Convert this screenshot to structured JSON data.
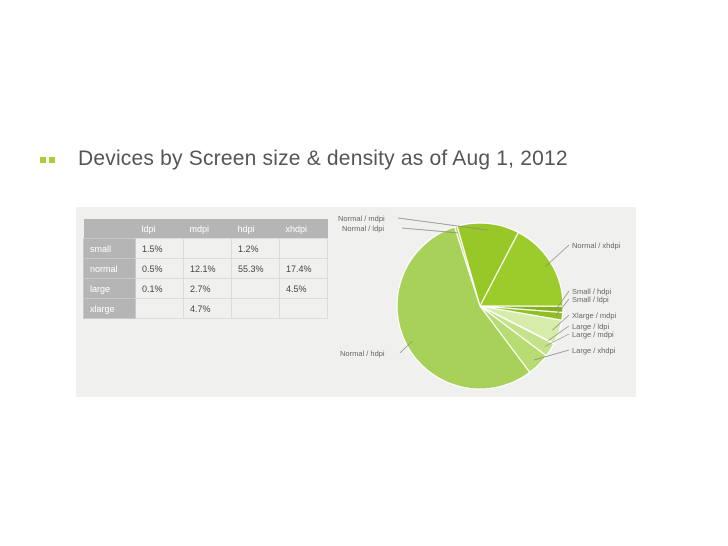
{
  "slide": {
    "title": "Devices by Screen size & density as of Aug 1, 2012"
  },
  "colors": {
    "accent": "#a6cf39",
    "table_header": "#b5b5b5"
  },
  "chart_data": [
    {
      "type": "table",
      "columns": [
        "",
        "ldpi",
        "mdpi",
        "hdpi",
        "xhdpi"
      ],
      "rows": [
        {
          "label": "small",
          "cells": [
            "1.5%",
            "",
            "1.2%",
            ""
          ]
        },
        {
          "label": "normal",
          "cells": [
            "0.5%",
            "12.1%",
            "55.3%",
            "17.4%"
          ]
        },
        {
          "label": "large",
          "cells": [
            "0.1%",
            "2.7%",
            "",
            "4.5%"
          ]
        },
        {
          "label": "xlarge",
          "cells": [
            "",
            "4.7%",
            "",
            ""
          ]
        }
      ]
    },
    {
      "type": "pie",
      "slices": [
        {
          "label": "Normal / mdpi",
          "value": 12.1,
          "color": "#98c827"
        },
        {
          "label": "Normal / xhdpi",
          "value": 17.4,
          "color": "#9ccc2c"
        },
        {
          "label": "Small / hdpi",
          "value": 1.2,
          "color": "#82b11c"
        },
        {
          "label": "Small / ldpi",
          "value": 1.5,
          "color": "#8fbf22"
        },
        {
          "label": "Xlarge / mdpi",
          "value": 4.7,
          "color": "#d6ecaa"
        },
        {
          "label": "Large / ldpi",
          "value": 0.1,
          "color": "#cde79a"
        },
        {
          "label": "Large / mdpi",
          "value": 2.7,
          "color": "#c4e28a"
        },
        {
          "label": "Large / xhdpi",
          "value": 4.5,
          "color": "#b6dc72"
        },
        {
          "label": "Normal / hdpi",
          "value": 55.3,
          "color": "#a8d15a"
        },
        {
          "label": "Normal / ldpi",
          "value": 0.5,
          "color": "#b4d868"
        }
      ]
    }
  ]
}
